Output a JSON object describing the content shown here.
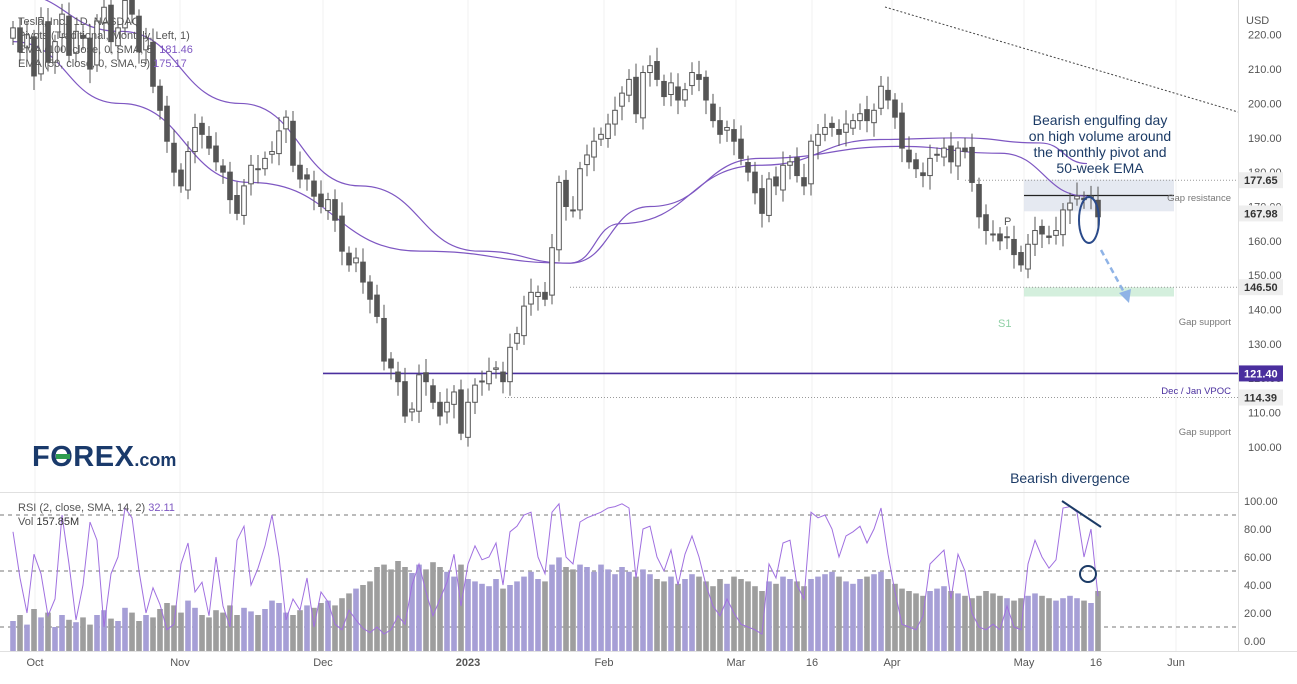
{
  "legend": {
    "line1": "Tesla, Inc., 1D, NASDAQ",
    "line2": "Pivots (Traditional, Monthly, Left, 1)",
    "line3_label": "EMA (100, close, 0, SMA, 5)",
    "line3_value": "181.46",
    "line4_label": "EMA (50, close, 0, SMA, 5)",
    "line4_value": "175.17",
    "rsi_label": "RSI (2, close, SMA, 14, 2)",
    "rsi_value": "32.11",
    "vol_label": "Vol",
    "vol_value": "157.85M"
  },
  "logo": {
    "part1": "F",
    "part2": "O",
    "part3": "REX",
    "part4": ".com"
  },
  "annotations": {
    "engulfing": [
      "Bearish engulfing day",
      "on high volume around",
      "the monthly pivot and",
      "50-week EMA"
    ],
    "divergence": "Bearish divergence",
    "gap_resistance": "Gap resistance",
    "gap_support_1": "Gap support",
    "gap_support_2": "Gap support",
    "vpoc": "Dec / Jan VPOC",
    "pivot_p": "P",
    "pivot_s1": "S1"
  },
  "colors": {
    "candle": "#555555",
    "ema": "#7e57c2",
    "vpoc": "#4a2f9e",
    "rsi": "#a070e0",
    "vol_up": "#a69fd6",
    "vol_down": "#9e9e9e",
    "annotation": "#1c3b66",
    "arrow": "#8fb3e6"
  },
  "chart_data": [
    {
      "type": "candlestick",
      "title": "Tesla, Inc., 1D, NASDAQ",
      "currency": "USD",
      "ylim": [
        95,
        235
      ],
      "y_ticks": [
        "220.00",
        "210.00",
        "200.00",
        "190.00",
        "180.00",
        "170.00",
        "160.00",
        "150.00",
        "140.00",
        "130.00",
        "120.00",
        "110.00",
        "100.00"
      ],
      "x_ticks": [
        "Oct",
        "Nov",
        "Dec",
        "2023",
        "Feb",
        "Mar",
        "16",
        "Apr",
        "May",
        "16",
        "Jun"
      ],
      "price_labels": [
        {
          "value": 177.65,
          "text": "177.65",
          "style": "grey"
        },
        {
          "value": 167.98,
          "text": "167.98",
          "style": "grey"
        },
        {
          "value": 146.5,
          "text": "146.50",
          "style": "grey"
        },
        {
          "value": 121.4,
          "text": "121.40",
          "style": "purple"
        },
        {
          "value": 114.39,
          "text": "114.39",
          "style": "grey"
        }
      ],
      "levels": {
        "gap_resistance": 177.65,
        "pivot_p": 173.2,
        "gap_support": 146.5,
        "s1": 143.8,
        "vpoc": 121.4,
        "gap_support_low": 114.39
      },
      "closes": [
        222,
        215,
        220,
        208,
        225,
        212,
        218,
        226,
        214,
        221,
        219,
        210,
        224,
        228,
        218,
        222,
        230,
        226,
        215,
        219,
        205,
        198,
        189,
        180,
        176,
        186,
        193,
        191,
        187,
        183,
        180,
        172,
        168,
        176,
        182,
        181,
        184,
        186,
        192,
        196,
        182,
        178,
        178,
        173,
        170,
        172,
        166,
        157,
        153,
        155,
        148,
        143,
        138,
        125,
        123,
        119,
        109,
        111,
        121,
        119,
        113,
        109,
        113,
        116,
        104,
        113,
        118,
        119,
        122,
        123,
        119,
        129,
        133,
        141,
        145,
        145,
        143,
        158,
        177,
        170,
        169,
        181,
        185,
        189,
        191,
        194,
        198,
        203,
        207,
        197,
        209,
        211,
        207,
        202,
        206,
        201,
        204,
        209,
        207,
        201,
        195,
        191,
        193,
        189,
        184,
        180,
        174,
        168,
        178,
        176,
        182,
        183,
        179,
        176,
        189,
        191,
        193,
        193,
        191,
        194,
        195,
        197,
        195,
        198,
        205,
        201,
        196,
        187,
        183,
        181,
        179,
        184,
        185,
        187,
        183,
        187,
        186,
        177,
        167,
        163,
        162,
        160,
        161,
        156,
        153,
        159,
        163,
        162,
        161,
        163,
        169,
        171,
        173,
        172,
        173,
        167
      ],
      "ema100": [
        232,
        221,
        200,
        176,
        157,
        153.5,
        165,
        182,
        189.5,
        190,
        188.5,
        182.5
      ],
      "ema50": [
        218,
        200,
        177,
        157,
        153.5,
        170,
        184,
        187.5,
        185.5,
        173
      ]
    },
    {
      "type": "line+bar",
      "title": "RSI (2, close, SMA, 14, 2)",
      "ylim": [
        -9,
        105
      ],
      "y_ticks": [
        "100.00",
        "80.00",
        "60.00",
        "40.00",
        "20.00",
        "0.00"
      ],
      "rsi_levels": [
        90,
        50,
        10
      ],
      "rsi_last": 32.11,
      "volume_last": "157.85M",
      "rsi": [
        78,
        45,
        20,
        62,
        48,
        18,
        30,
        90,
        55,
        15,
        40,
        85,
        72,
        10,
        48,
        60,
        95,
        88,
        50,
        20,
        38,
        26,
        8,
        12,
        55,
        70,
        35,
        42,
        18,
        60,
        25,
        10,
        72,
        82,
        40,
        52,
        68,
        90,
        60,
        15,
        30,
        22,
        45,
        10,
        35,
        28,
        12,
        8,
        22,
        15,
        9,
        6,
        10,
        5,
        8,
        18,
        12,
        40,
        55,
        35,
        18,
        30,
        42,
        62,
        25,
        55,
        68,
        58,
        60,
        70,
        40,
        78,
        82,
        90,
        92,
        60,
        48,
        92,
        98,
        60,
        55,
        85,
        88,
        90,
        92,
        95,
        96,
        98,
        95,
        45,
        80,
        82,
        60,
        50,
        65,
        40,
        62,
        75,
        60,
        40,
        25,
        18,
        30,
        20,
        12,
        10,
        8,
        5,
        55,
        45,
        70,
        72,
        40,
        30,
        92,
        88,
        90,
        80,
        60,
        75,
        78,
        82,
        70,
        80,
        95,
        62,
        35,
        12,
        10,
        8,
        18,
        55,
        60,
        65,
        30,
        62,
        50,
        20,
        10,
        8,
        12,
        8,
        25,
        10,
        8,
        55,
        72,
        60,
        52,
        58,
        95,
        96,
        92,
        60,
        80,
        32
      ],
      "volume": [
        25,
        30,
        22,
        35,
        28,
        32,
        20,
        30,
        26,
        24,
        28,
        22,
        30,
        34,
        27,
        25,
        36,
        32,
        25,
        30,
        28,
        35,
        40,
        38,
        32,
        42,
        36,
        30,
        28,
        34,
        32,
        38,
        30,
        36,
        33,
        30,
        35,
        42,
        40,
        32,
        30,
        34,
        38,
        36,
        40,
        42,
        38,
        44,
        48,
        52,
        55,
        58,
        70,
        72,
        68,
        75,
        70,
        65,
        72,
        68,
        74,
        70,
        66,
        62,
        72,
        60,
        58,
        56,
        54,
        60,
        52,
        55,
        58,
        62,
        66,
        60,
        58,
        72,
        78,
        70,
        68,
        72,
        70,
        66,
        72,
        68,
        64,
        70,
        66,
        62,
        68,
        64,
        60,
        58,
        62,
        56,
        60,
        64,
        62,
        58,
        54,
        60,
        56,
        62,
        60,
        58,
        54,
        50,
        58,
        56,
        62,
        60,
        58,
        54,
        60,
        62,
        64,
        66,
        62,
        58,
        56,
        60,
        62,
        64,
        66,
        60,
        56,
        52,
        50,
        48,
        46,
        50,
        52,
        54,
        50,
        48,
        46,
        44,
        46,
        50,
        48,
        46,
        44,
        42,
        44,
        46,
        48,
        46,
        44,
        42,
        44,
        46,
        44,
        42,
        40,
        50
      ]
    }
  ]
}
